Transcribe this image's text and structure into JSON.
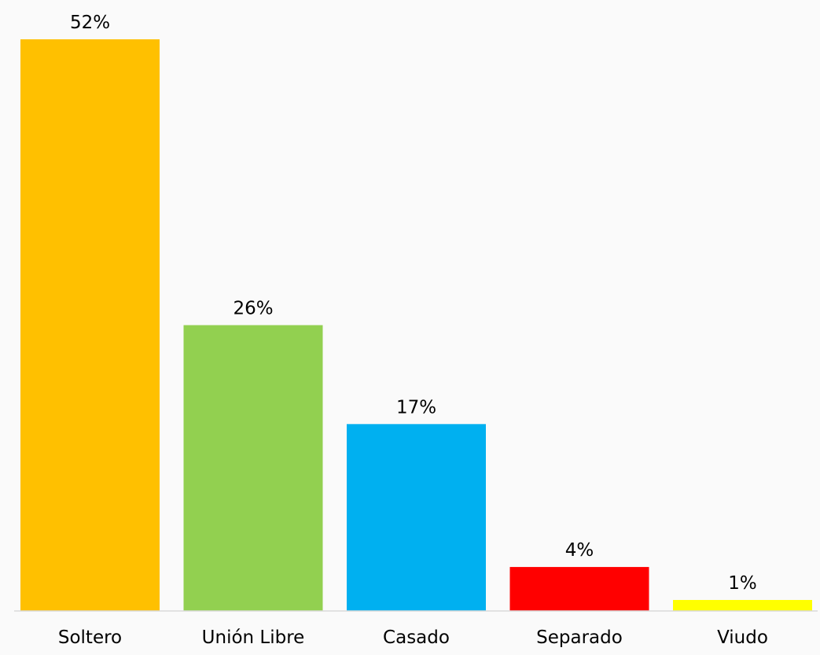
{
  "chart_data": {
    "type": "bar",
    "categories": [
      "Soltero",
      "Unión Libre",
      "Casado",
      "Separado",
      "Viudo"
    ],
    "values": [
      52,
      26,
      17,
      4,
      1
    ],
    "data_labels": [
      "52%",
      "26%",
      "17%",
      "4%",
      "1%"
    ],
    "unit": "%",
    "colors": [
      "#FFC000",
      "#92D050",
      "#00B0F0",
      "#FF0000",
      "#FFFF00"
    ],
    "title": "",
    "xlabel": "",
    "ylabel": "",
    "ylim": [
      0,
      52
    ],
    "grid": false,
    "legend": "none"
  }
}
